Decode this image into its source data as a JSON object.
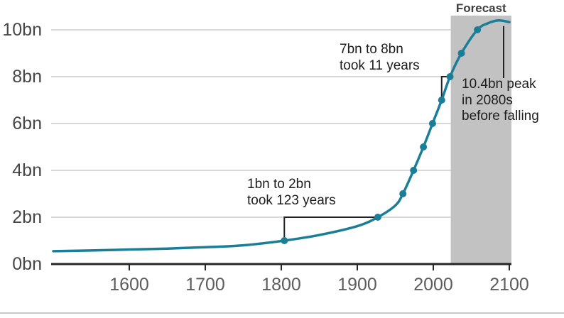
{
  "chart_data": {
    "type": "line",
    "title": "",
    "xlabel": "",
    "ylabel": "",
    "unit": "bn",
    "xlim": [
      1500,
      2100
    ],
    "ylim": [
      0,
      10.6
    ],
    "grid": "horizontal",
    "x_ticks": [
      1600,
      1700,
      1800,
      1900,
      2000,
      2100
    ],
    "y_ticks": [
      {
        "value": 0,
        "label": "0bn"
      },
      {
        "value": 2,
        "label": "2bn"
      },
      {
        "value": 4,
        "label": "4bn"
      },
      {
        "value": 6,
        "label": "6bn"
      },
      {
        "value": 8,
        "label": "8bn"
      },
      {
        "value": 10,
        "label": "10bn"
      }
    ],
    "series": [
      {
        "name": "world-population",
        "points": [
          [
            1500,
            0.55
          ],
          [
            1550,
            0.58
          ],
          [
            1600,
            0.62
          ],
          [
            1650,
            0.66
          ],
          [
            1700,
            0.72
          ],
          [
            1750,
            0.8
          ],
          [
            1804,
            1.0
          ],
          [
            1850,
            1.24
          ],
          [
            1900,
            1.62
          ],
          [
            1927,
            2.0
          ],
          [
            1950,
            2.5
          ],
          [
            1960,
            3.0
          ],
          [
            1974,
            4.0
          ],
          [
            1987,
            5.0
          ],
          [
            1999,
            6.0
          ],
          [
            2011,
            7.0
          ],
          [
            2022,
            8.0
          ],
          [
            2037,
            9.0
          ],
          [
            2058,
            10.0
          ],
          [
            2072,
            10.28
          ],
          [
            2086,
            10.4
          ],
          [
            2100,
            10.33
          ]
        ]
      }
    ],
    "markers": [
      [
        1804,
        1
      ],
      [
        1927,
        2
      ],
      [
        1960,
        3
      ],
      [
        1974,
        4
      ],
      [
        1987,
        5
      ],
      [
        1999,
        6
      ],
      [
        2011,
        7
      ],
      [
        2022,
        8
      ],
      [
        2037,
        9
      ],
      [
        2058,
        10
      ]
    ],
    "forecast": {
      "label": "Forecast",
      "start_year": 2023,
      "end_year": 2100
    },
    "annotations": [
      {
        "id": "span-1bn-2bn",
        "text": "1bn to 2bn\ntook 123 years",
        "from": [
          1804,
          1
        ],
        "to": [
          1927,
          2
        ]
      },
      {
        "id": "span-7bn-8bn",
        "text": "7bn to 8bn\ntook 11 years",
        "from": [
          2011,
          7
        ],
        "to": [
          2022,
          8
        ]
      },
      {
        "id": "peak",
        "text": "10.4bn peak\nin 2080s\nbefore falling",
        "point": [
          2086,
          10.4
        ]
      }
    ],
    "colors": {
      "line": "#1A7E98",
      "marker": "#1A7E98",
      "forecast_band": "#C2C2C2",
      "grid": "#CCCCCC",
      "axis": "#262626",
      "annotation_line": "#222222",
      "annotation_text": "#1D1D1D",
      "y_label": "#464646",
      "x_label": "#5D5D5D",
      "forecast_label": "#404040"
    }
  }
}
